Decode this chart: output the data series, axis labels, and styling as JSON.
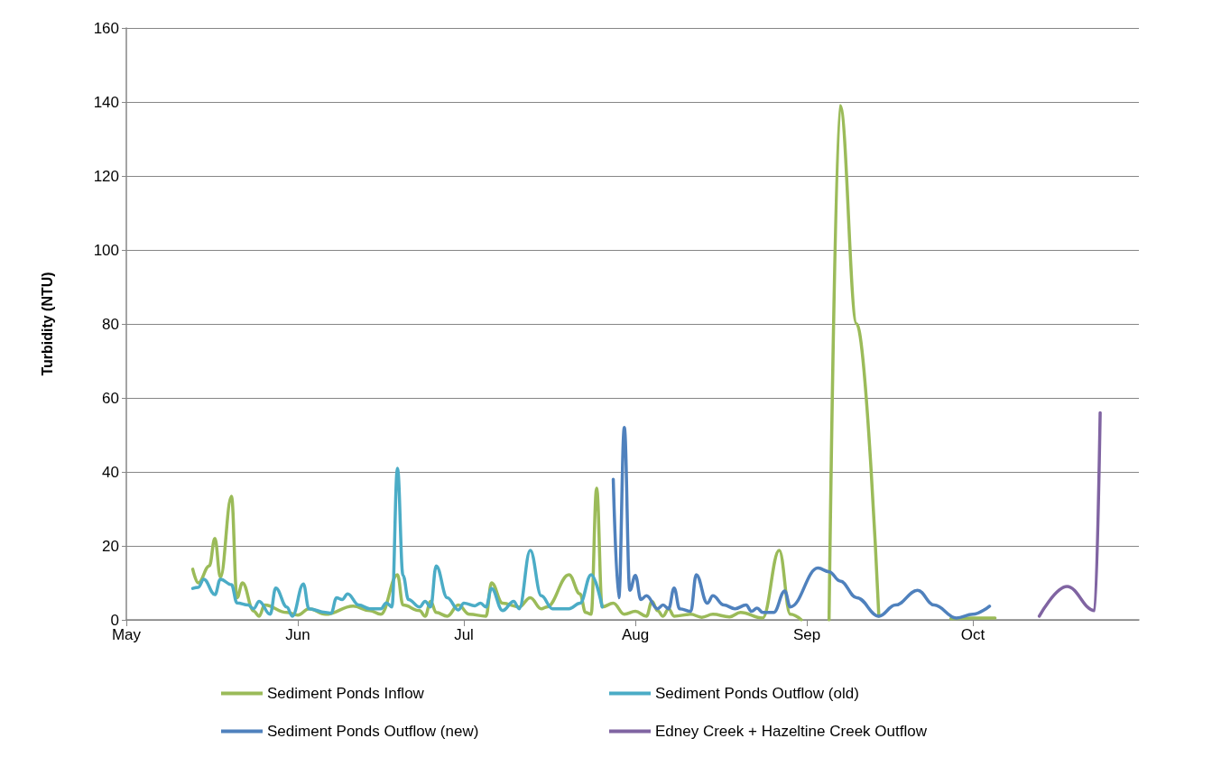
{
  "chart_data": {
    "type": "line",
    "ylabel": "Turbidity (NTU)",
    "xlim": [
      "--05-01",
      "--10-31"
    ],
    "xticks": [
      {
        "value": "--05-01",
        "label": "May"
      },
      {
        "value": "--06-01",
        "label": "Jun"
      },
      {
        "value": "--07-01",
        "label": "Jul"
      },
      {
        "value": "--08-01",
        "label": "Aug"
      },
      {
        "value": "--09-01",
        "label": "Sep"
      },
      {
        "value": "--10-01",
        "label": "Oct"
      }
    ],
    "ylim": [
      0,
      160
    ],
    "yticks": [
      0,
      20,
      40,
      60,
      80,
      100,
      120,
      140,
      160
    ],
    "grid": "y",
    "legend": "bottom",
    "marker": "none",
    "line_style": "solid",
    "series": [
      {
        "name": "Sediment Ponds Inflow",
        "color": "#9bbb59",
        "x": [
          "--05-13",
          "--05-14",
          "--05-16",
          "--05-17",
          "--05-18",
          "--05-20",
          "--05-21",
          "--05-22",
          "--05-24",
          "--05-25",
          "--05-26",
          "--05-30",
          "--06-01",
          "--06-03",
          "--06-06",
          "--06-11",
          "--06-14",
          "--06-16",
          "--06-19",
          "--06-20",
          "--06-23",
          "--06-24",
          "--06-25",
          "--06-26",
          "--06-28",
          "--06-30",
          "--07-02",
          "--07-05",
          "--07-06",
          "--07-08",
          "--07-11",
          "--07-13",
          "--07-15",
          "--07-16",
          "--07-20",
          "--07-22",
          "--07-23",
          "--07-24",
          "--07-25",
          "--07-26",
          "--07-28",
          "--07-30",
          "--08-01",
          "--08-03",
          "--08-04",
          "--08-05",
          "--08-06",
          "--08-07",
          "--08-08",
          "--08-11",
          "--08-13",
          "--08-15",
          "--08-18",
          "--08-20",
          "--08-24",
          "--08-27",
          "--08-29",
          "--08-31",
          "--09-03",
          "--09-05",
          "--09-07",
          "--09-10",
          "--09-14",
          "--09-20",
          "--09-27",
          "--10-01",
          "--10-05"
        ],
        "values": [
          13.7,
          10,
          14.6,
          22,
          11.5,
          33.4,
          6,
          10,
          2.4,
          1,
          4,
          2,
          1.3,
          3,
          1.5,
          3.7,
          2.5,
          1.5,
          12.2,
          4,
          2.5,
          1,
          5,
          2,
          1,
          4,
          1.5,
          1,
          10,
          4.5,
          3.5,
          6,
          3,
          3.5,
          12.2,
          7,
          2,
          1.5,
          35.6,
          3.5,
          4.5,
          1.5,
          2.3,
          1,
          5,
          2.5,
          1,
          3,
          1,
          1.5,
          0.7,
          1.5,
          0.8,
          2,
          0.5,
          18.8,
          1.5,
          0,
          null,
          0,
          139,
          80,
          1,
          null,
          0.3,
          0.5,
          0.5
        ]
      },
      {
        "name": "Sediment Ponds Outflow (old)",
        "color": "#4bacc6",
        "x": [
          "--05-13",
          "--05-14",
          "--05-15",
          "--05-17",
          "--05-18",
          "--05-20",
          "--05-21",
          "--05-23",
          "--05-24",
          "--05-25",
          "--05-27",
          "--05-28",
          "--05-30",
          "--05-31",
          "--06-02",
          "--06-03",
          "--06-06",
          "--06-07",
          "--06-08",
          "--06-09",
          "--06-10",
          "--06-12",
          "--06-14",
          "--06-16",
          "--06-17",
          "--06-18",
          "--06-19",
          "--06-20",
          "--06-21",
          "--06-23",
          "--06-24",
          "--06-25",
          "--06-26",
          "--06-28",
          "--06-30",
          "--07-01",
          "--07-03",
          "--07-04",
          "--07-05",
          "--07-06",
          "--07-08",
          "--07-10",
          "--07-11",
          "--07-13",
          "--07-15",
          "--07-17",
          "--07-20",
          "--07-22",
          "--07-24",
          "--07-26"
        ],
        "values": [
          8.5,
          8.8,
          11,
          6.8,
          11,
          9.5,
          4.6,
          4,
          3,
          5,
          1.5,
          8.6,
          3.5,
          1,
          9.7,
          3,
          2,
          1.8,
          6,
          5.5,
          7,
          4,
          3,
          3,
          4.6,
          3.5,
          41,
          12,
          5.5,
          3.5,
          5,
          3.5,
          14.6,
          6,
          2.7,
          4.5,
          3.8,
          4.5,
          3.5,
          8.5,
          2.5,
          5,
          3,
          18.8,
          6.5,
          3,
          3,
          4.5,
          12.2,
          3.5
        ]
      },
      {
        "name": "Sediment Ponds Outflow (new)",
        "color": "#4f81bd",
        "x": [
          "--07-28",
          "--07-29",
          "--07-30",
          "--07-31",
          "--08-01",
          "--08-02",
          "--08-03",
          "--08-05",
          "--08-06",
          "--08-07",
          "--08-08",
          "--08-09",
          "--08-11",
          "--08-12",
          "--08-14",
          "--08-15",
          "--08-17",
          "--08-19",
          "--08-21",
          "--08-22",
          "--08-23",
          "--08-24",
          "--08-26",
          "--08-28",
          "--08-29",
          "--09-03",
          "--09-05",
          "--09-07",
          "--09-10",
          "--09-14",
          "--09-17",
          "--09-21",
          "--09-24",
          "--09-28",
          "--10-01",
          "--10-04"
        ],
        "values": [
          38,
          6,
          52,
          8,
          12,
          5.5,
          6.5,
          3,
          4,
          3,
          8.6,
          3,
          2.3,
          12.2,
          4.5,
          6.5,
          4,
          3,
          4,
          2.3,
          3.2,
          2,
          2,
          7.8,
          3.5,
          14,
          13,
          10.5,
          6,
          1,
          4,
          8,
          4,
          0.5,
          1.5,
          3.7
        ]
      },
      {
        "name": "Edney Creek + Hazeltine Creek Outflow",
        "color": "#8064a2",
        "x": [
          "--10-13",
          "--10-18",
          "--10-23",
          "--10-24"
        ],
        "values": [
          1,
          9,
          2.5,
          56
        ]
      }
    ]
  }
}
